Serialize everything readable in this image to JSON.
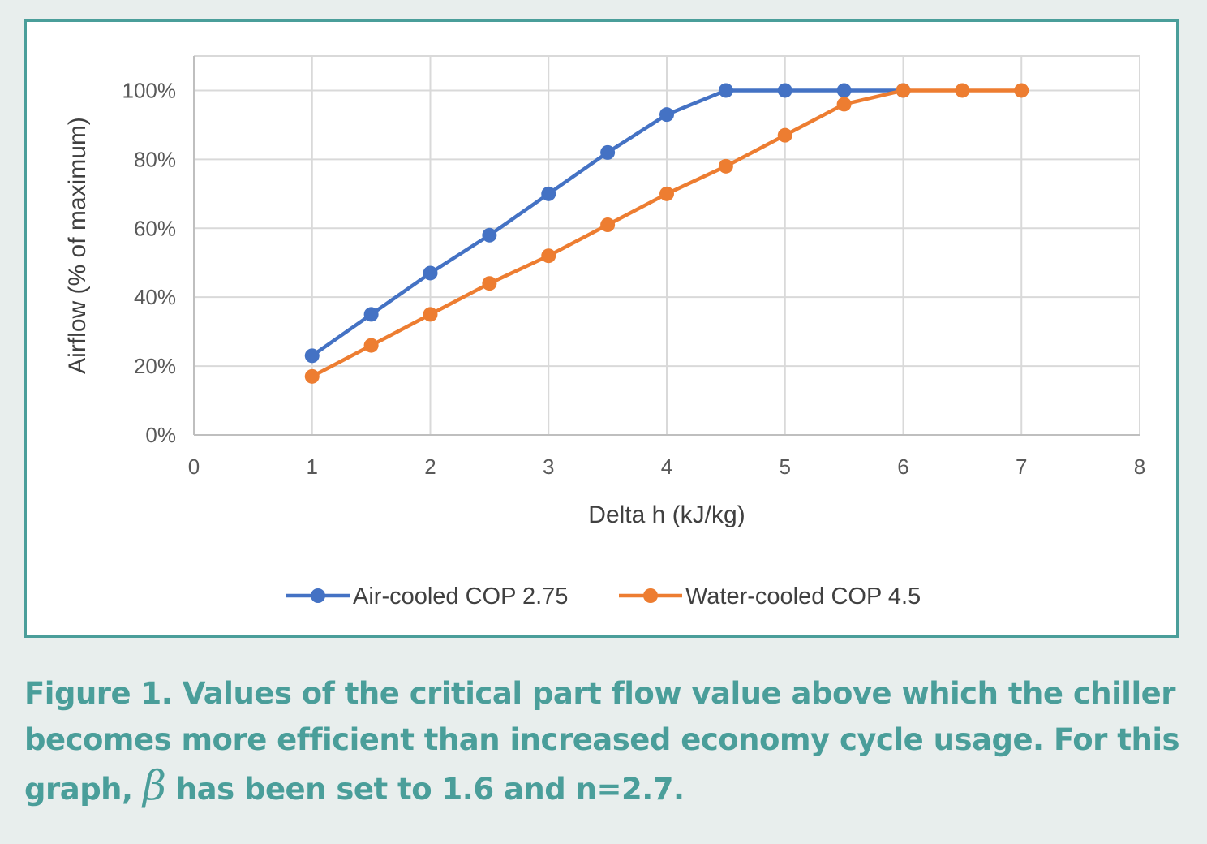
{
  "chart_data": {
    "type": "line",
    "xlabel": "Delta h (kJ/kg)",
    "ylabel": "Airflow (% of maximum)",
    "xlim": [
      0,
      8
    ],
    "ylim": [
      0,
      110
    ],
    "x_ticks": [
      "0",
      "1",
      "2",
      "3",
      "4",
      "5",
      "6",
      "7",
      "8"
    ],
    "y_ticks": [
      "0%",
      "20%",
      "40%",
      "60%",
      "80%",
      "100%"
    ],
    "grid": true,
    "legend_position": "bottom",
    "series": [
      {
        "name": "Air-cooled COP 2.75",
        "color": "#4472c4",
        "x": [
          1,
          1.5,
          2,
          2.5,
          3,
          3.5,
          4,
          4.5,
          5,
          5.5,
          6
        ],
        "y": [
          23,
          35,
          47,
          58,
          70,
          82,
          93,
          100,
          100,
          100,
          100
        ]
      },
      {
        "name": "Water-cooled COP 4.5",
        "color": "#ed7d31",
        "x": [
          1,
          1.5,
          2,
          2.5,
          3,
          3.5,
          4,
          4.5,
          5,
          5.5,
          6,
          6.5,
          7
        ],
        "y": [
          17,
          26,
          35,
          44,
          52,
          61,
          70,
          78,
          87,
          96,
          100,
          100,
          100
        ]
      }
    ]
  },
  "caption": {
    "line1": "Figure 1. Values of the critical part flow value above which the chiller",
    "line2": "becomes more efficient than increased economy cycle usage. For this",
    "line3_start": "graph, ",
    "beta": "β",
    "line3_end": " has been set to 1.6 and n=2.7."
  }
}
